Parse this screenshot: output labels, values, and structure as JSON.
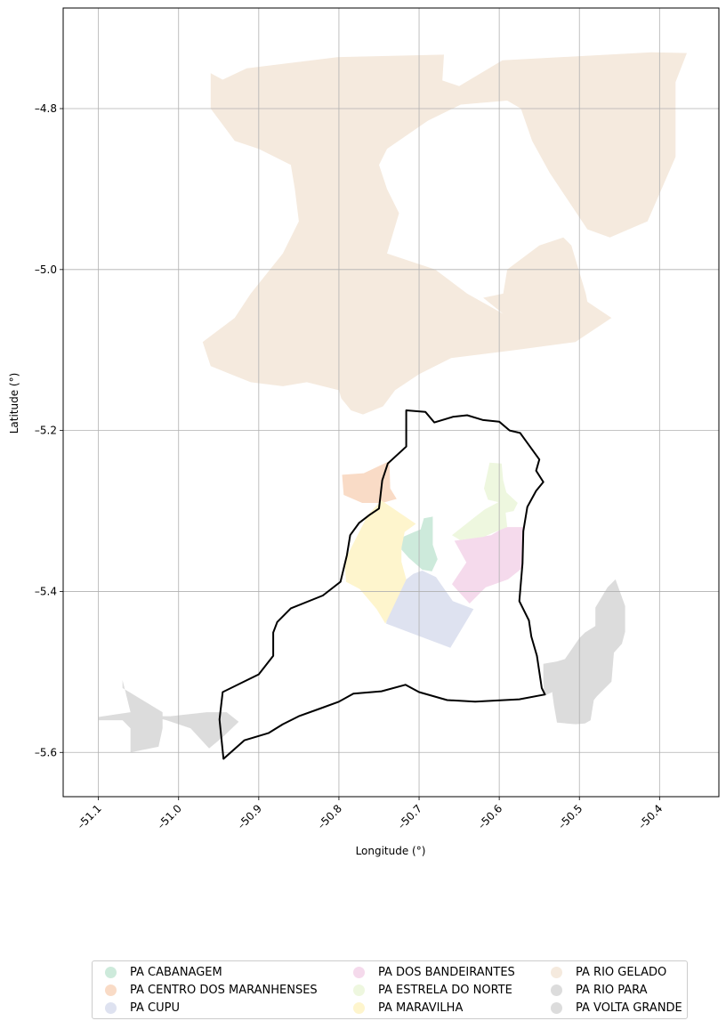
{
  "chart_data": {
    "type": "map",
    "xlabel": "Longitude (°)",
    "ylabel": "Latitude (°)",
    "xlim": [
      -51.144,
      -50.326
    ],
    "ylim": [
      -5.655,
      -4.675
    ],
    "x_ticks": [
      -51.1,
      -51.0,
      -50.9,
      -50.8,
      -50.7,
      -50.6,
      -50.5,
      -50.4
    ],
    "x_tick_labels": [
      "–51.1",
      "–51.0",
      "–50.9",
      "–50.8",
      "–50.7",
      "–50.6",
      "–50.5",
      "–50.4"
    ],
    "y_ticks": [
      -4.8,
      -5.0,
      -5.2,
      -5.4,
      -5.6
    ],
    "y_tick_labels": [
      "–4.8",
      "–5.0",
      "–5.2",
      "–5.4",
      "–5.6"
    ],
    "grid": true,
    "legend_placement": "bottom-center",
    "boundary_outline_color": "#000000",
    "series": [
      {
        "name": "PA CABANAGEM",
        "color": "#cdeadb",
        "polygons": [
          [
            [
              -50.706,
              -5.326
            ],
            [
              -50.698,
              -5.323
            ],
            [
              -50.694,
              -5.309
            ],
            [
              -50.683,
              -5.307
            ],
            [
              -50.683,
              -5.342
            ],
            [
              -50.677,
              -5.36
            ],
            [
              -50.684,
              -5.375
            ],
            [
              -50.696,
              -5.373
            ],
            [
              -50.713,
              -5.358
            ],
            [
              -50.722,
              -5.348
            ],
            [
              -50.722,
              -5.333
            ]
          ]
        ]
      },
      {
        "name": "PA CENTRO DOS MARANHENSES",
        "color": "#f9dbc6",
        "polygons": [
          [
            [
              -50.796,
              -5.255
            ],
            [
              -50.769,
              -5.253
            ],
            [
              -50.737,
              -5.238
            ],
            [
              -50.736,
              -5.272
            ],
            [
              -50.728,
              -5.285
            ],
            [
              -50.746,
              -5.29
            ],
            [
              -50.771,
              -5.29
            ],
            [
              -50.794,
              -5.28
            ]
          ]
        ]
      },
      {
        "name": "PA CUPU",
        "color": "#dee2f0",
        "polygons": [
          [
            [
              -50.716,
              -5.385
            ],
            [
              -50.707,
              -5.378
            ],
            [
              -50.696,
              -5.374
            ],
            [
              -50.679,
              -5.382
            ],
            [
              -50.658,
              -5.412
            ],
            [
              -50.632,
              -5.422
            ],
            [
              -50.661,
              -5.47
            ],
            [
              -50.741,
              -5.44
            ],
            [
              -50.74,
              -5.43
            ]
          ]
        ]
      },
      {
        "name": "PA DOS BANDEIRANTES",
        "color": "#f5daec",
        "polygons": [
          [
            [
              -50.593,
              -5.32
            ],
            [
              -50.61,
              -5.33
            ],
            [
              -50.649,
              -5.336
            ],
            [
              -50.656,
              -5.337
            ],
            [
              -50.641,
              -5.364
            ],
            [
              -50.659,
              -5.391
            ],
            [
              -50.648,
              -5.403
            ],
            [
              -50.637,
              -5.415
            ],
            [
              -50.617,
              -5.395
            ],
            [
              -50.589,
              -5.385
            ],
            [
              -50.57,
              -5.37
            ],
            [
              -50.57,
              -5.32
            ]
          ]
        ]
      },
      {
        "name": "PA ESTRELA DO NORTE",
        "color": "#eef7df",
        "polygons": [
          [
            [
              -50.612,
              -5.24
            ],
            [
              -50.597,
              -5.241
            ],
            [
              -50.595,
              -5.262
            ],
            [
              -50.591,
              -5.277
            ],
            [
              -50.577,
              -5.29
            ],
            [
              -50.582,
              -5.3
            ],
            [
              -50.592,
              -5.302
            ],
            [
              -50.59,
              -5.32
            ],
            [
              -50.61,
              -5.328
            ],
            [
              -50.619,
              -5.332
            ],
            [
              -50.649,
              -5.336
            ],
            [
              -50.659,
              -5.33
            ],
            [
              -50.631,
              -5.308
            ],
            [
              -50.618,
              -5.298
            ],
            [
              -50.601,
              -5.289
            ],
            [
              -50.614,
              -5.286
            ],
            [
              -50.619,
              -5.272
            ]
          ]
        ]
      },
      {
        "name": "PA MARAVILHA",
        "color": "#fef5cd",
        "polygons": [
          [
            [
              -50.747,
              -5.287
            ],
            [
              -50.764,
              -5.305
            ],
            [
              -50.793,
              -5.362
            ],
            [
              -50.791,
              -5.388
            ],
            [
              -50.774,
              -5.397
            ],
            [
              -50.753,
              -5.422
            ],
            [
              -50.742,
              -5.44
            ],
            [
              -50.716,
              -5.385
            ],
            [
              -50.722,
              -5.363
            ],
            [
              -50.722,
              -5.346
            ],
            [
              -50.718,
              -5.326
            ],
            [
              -50.704,
              -5.316
            ]
          ]
        ]
      },
      {
        "name": "PA RIO GELADO",
        "color": "#f5eade",
        "polygons": [
          [
            [
              -50.96,
              -4.756
            ],
            [
              -50.945,
              -4.764
            ],
            [
              -50.915,
              -4.75
            ],
            [
              -50.801,
              -4.736
            ],
            [
              -50.669,
              -4.733
            ],
            [
              -50.671,
              -4.765
            ],
            [
              -50.65,
              -4.772
            ],
            [
              -50.596,
              -4.74
            ],
            [
              -50.41,
              -4.73
            ],
            [
              -50.366,
              -4.731
            ],
            [
              -50.38,
              -4.767
            ],
            [
              -50.38,
              -4.86
            ],
            [
              -50.415,
              -4.94
            ],
            [
              -50.462,
              -4.96
            ],
            [
              -50.49,
              -4.95
            ],
            [
              -50.537,
              -4.88
            ],
            [
              -50.559,
              -4.84
            ],
            [
              -50.573,
              -4.8
            ],
            [
              -50.59,
              -4.79
            ],
            [
              -50.648,
              -4.795
            ],
            [
              -50.689,
              -4.815
            ],
            [
              -50.74,
              -4.85
            ],
            [
              -50.75,
              -4.87
            ],
            [
              -50.74,
              -4.9
            ],
            [
              -50.725,
              -4.93
            ],
            [
              -50.74,
              -4.98
            ],
            [
              -50.68,
              -5.0
            ],
            [
              -50.64,
              -5.03
            ],
            [
              -50.595,
              -5.055
            ],
            [
              -50.62,
              -5.035
            ],
            [
              -50.595,
              -5.03
            ],
            [
              -50.59,
              -5.0
            ],
            [
              -50.55,
              -4.97
            ],
            [
              -50.52,
              -4.96
            ],
            [
              -50.51,
              -4.97
            ],
            [
              -50.492,
              -5.03
            ],
            [
              -50.49,
              -5.04
            ],
            [
              -50.46,
              -5.06
            ],
            [
              -50.505,
              -5.09
            ],
            [
              -50.58,
              -5.1
            ],
            [
              -50.66,
              -5.11
            ],
            [
              -50.7,
              -5.13
            ],
            [
              -50.73,
              -5.15
            ],
            [
              -50.745,
              -5.17
            ],
            [
              -50.77,
              -5.18
            ],
            [
              -50.785,
              -5.175
            ],
            [
              -50.797,
              -5.16
            ],
            [
              -50.8,
              -5.15
            ],
            [
              -50.84,
              -5.14
            ],
            [
              -50.87,
              -5.145
            ],
            [
              -50.91,
              -5.14
            ],
            [
              -50.935,
              -5.13
            ],
            [
              -50.96,
              -5.12
            ],
            [
              -50.97,
              -5.09
            ],
            [
              -50.93,
              -5.06
            ],
            [
              -50.91,
              -5.03
            ],
            [
              -50.87,
              -4.98
            ],
            [
              -50.85,
              -4.94
            ],
            [
              -50.855,
              -4.9
            ],
            [
              -50.86,
              -4.87
            ],
            [
              -50.9,
              -4.85
            ],
            [
              -50.93,
              -4.84
            ],
            [
              -50.96,
              -4.8
            ]
          ]
        ]
      },
      {
        "name": "PA RIO PARA",
        "color": "#dcdcdc",
        "polygons": [
          [
            [
              -51.1,
              -5.56
            ],
            [
              -51.07,
              -5.56
            ],
            [
              -51.06,
              -5.57
            ],
            [
              -51.06,
              -5.6
            ],
            [
              -51.025,
              -5.593
            ],
            [
              -51.02,
              -5.57
            ],
            [
              -51.02,
              -5.55
            ],
            [
              -51.07,
              -5.52
            ],
            [
              -51.07,
              -5.51
            ],
            [
              -51.06,
              -5.55
            ],
            [
              -51.1,
              -5.556
            ]
          ]
        ]
      },
      {
        "name": "PA VOLTA GRANDE",
        "color": "#dcdcdc",
        "polygons": [
          [
            [
              -51.035,
              -5.555
            ],
            [
              -51.015,
              -5.56
            ],
            [
              -50.985,
              -5.57
            ],
            [
              -50.962,
              -5.595
            ],
            [
              -50.945,
              -5.581
            ],
            [
              -50.925,
              -5.562
            ],
            [
              -50.94,
              -5.55
            ],
            [
              -50.965,
              -5.55
            ],
            [
              -51.01,
              -5.555
            ]
          ],
          [
            [
              -50.518,
              -5.484
            ],
            [
              -50.5,
              -5.458
            ],
            [
              -50.493,
              -5.451
            ],
            [
              -50.48,
              -5.443
            ],
            [
              -50.48,
              -5.42
            ],
            [
              -50.465,
              -5.395
            ],
            [
              -50.455,
              -5.385
            ],
            [
              -50.443,
              -5.418
            ],
            [
              -50.443,
              -5.45
            ],
            [
              -50.447,
              -5.465
            ],
            [
              -50.457,
              -5.476
            ],
            [
              -50.46,
              -5.512
            ],
            [
              -50.478,
              -5.53
            ],
            [
              -50.482,
              -5.535
            ],
            [
              -50.486,
              -5.56
            ],
            [
              -50.493,
              -5.564
            ],
            [
              -50.505,
              -5.565
            ],
            [
              -50.528,
              -5.563
            ],
            [
              -50.532,
              -5.54
            ],
            [
              -50.534,
              -5.525
            ],
            [
              -50.544,
              -5.53
            ],
            [
              -50.545,
              -5.51
            ],
            [
              -50.545,
              -5.49
            ],
            [
              -50.528,
              -5.487
            ]
          ]
        ]
      }
    ],
    "boundary": [
      [
        -50.716,
        -5.175
      ],
      [
        -50.692,
        -5.177
      ],
      [
        -50.681,
        -5.19
      ],
      [
        -50.658,
        -5.183
      ],
      [
        -50.64,
        -5.181
      ],
      [
        -50.62,
        -5.187
      ],
      [
        -50.6,
        -5.189
      ],
      [
        -50.587,
        -5.2
      ],
      [
        -50.574,
        -5.203
      ],
      [
        -50.566,
        -5.214
      ],
      [
        -50.55,
        -5.236
      ],
      [
        -50.554,
        -5.25
      ],
      [
        -50.545,
        -5.264
      ],
      [
        -50.554,
        -5.275
      ],
      [
        -50.565,
        -5.295
      ],
      [
        -50.57,
        -5.325
      ],
      [
        -50.571,
        -5.365
      ],
      [
        -50.575,
        -5.412
      ],
      [
        -50.563,
        -5.436
      ],
      [
        -50.56,
        -5.456
      ],
      [
        -50.553,
        -5.48
      ],
      [
        -50.547,
        -5.52
      ],
      [
        -50.543,
        -5.528
      ],
      [
        -50.575,
        -5.534
      ],
      [
        -50.612,
        -5.536
      ],
      [
        -50.63,
        -5.537
      ],
      [
        -50.665,
        -5.535
      ],
      [
        -50.7,
        -5.525
      ],
      [
        -50.717,
        -5.516
      ],
      [
        -50.747,
        -5.524
      ],
      [
        -50.782,
        -5.527
      ],
      [
        -50.8,
        -5.537
      ],
      [
        -50.825,
        -5.546
      ],
      [
        -50.85,
        -5.555
      ],
      [
        -50.87,
        -5.565
      ],
      [
        -50.888,
        -5.576
      ],
      [
        -50.918,
        -5.585
      ],
      [
        -50.944,
        -5.608
      ],
      [
        -50.949,
        -5.559
      ],
      [
        -50.945,
        -5.525
      ],
      [
        -50.9,
        -5.503
      ],
      [
        -50.882,
        -5.48
      ],
      [
        -50.882,
        -5.451
      ],
      [
        -50.877,
        -5.438
      ],
      [
        -50.86,
        -5.421
      ],
      [
        -50.82,
        -5.405
      ],
      [
        -50.798,
        -5.388
      ],
      [
        -50.79,
        -5.355
      ],
      [
        -50.786,
        -5.33
      ],
      [
        -50.775,
        -5.315
      ],
      [
        -50.762,
        -5.305
      ],
      [
        -50.75,
        -5.297
      ],
      [
        -50.746,
        -5.262
      ],
      [
        -50.739,
        -5.241
      ],
      [
        -50.716,
        -5.22
      ],
      [
        -50.716,
        -5.175
      ]
    ]
  },
  "legend": {
    "items": [
      {
        "label": "PA CABANAGEM",
        "color": "#cdeadb"
      },
      {
        "label": "PA CENTRO DOS MARANHENSES",
        "color": "#f9dbc6"
      },
      {
        "label": "PA CUPU",
        "color": "#dee2f0"
      },
      {
        "label": "PA DOS BANDEIRANTES",
        "color": "#f5daec"
      },
      {
        "label": "PA ESTRELA DO NORTE",
        "color": "#eef7df"
      },
      {
        "label": "PA MARAVILHA",
        "color": "#fef5cd"
      },
      {
        "label": "PA RIO GELADO",
        "color": "#f5eade"
      },
      {
        "label": "PA RIO PARA",
        "color": "#dcdcdc"
      },
      {
        "label": "PA VOLTA GRANDE",
        "color": "#dcdcdc"
      }
    ]
  }
}
